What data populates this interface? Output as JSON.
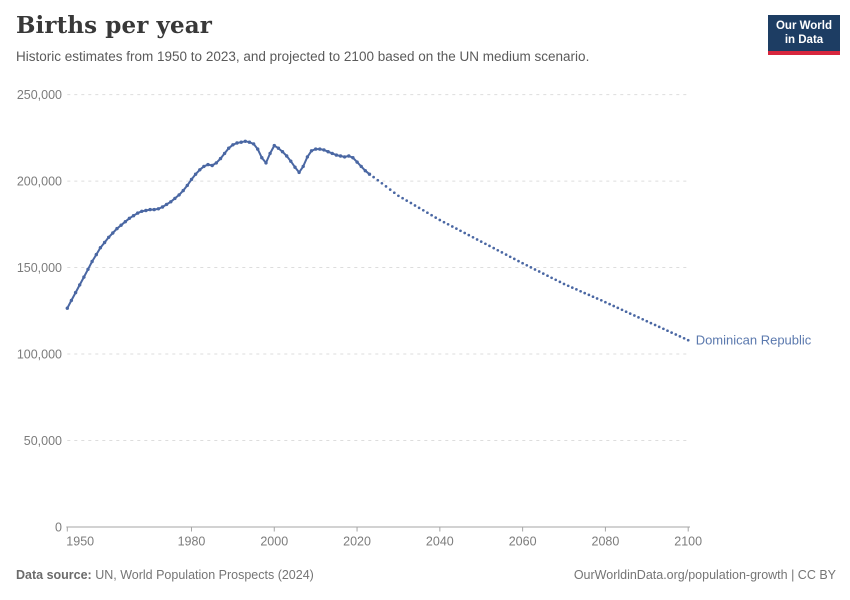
{
  "header": {
    "title": "Births per year",
    "subtitle": "Historic estimates from 1950 to 2023, and projected to 2100 based on the UN medium scenario.",
    "logo": {
      "line1": "Our World",
      "line2": "in Data",
      "bg_color": "#1d3d63",
      "accent_color": "#d7263d"
    }
  },
  "footer": {
    "source_label": "Data source:",
    "source_text": " UN, World Population Prospects (2024)",
    "link_text": "OurWorldinData.org/population-growth | CC BY"
  },
  "chart_data": {
    "type": "line",
    "title": "Births per year",
    "entity_label": "Dominican Republic",
    "line_color": "#4a67a3",
    "entity_label_color": "#5b79ae",
    "grid_color": "#dddddd",
    "axis_color": "#a5a5a5",
    "grid_on": true,
    "legend_position": "end-of-line",
    "xlim": [
      1950,
      2100
    ],
    "ylim": [
      0,
      250000
    ],
    "x_ticks": [
      1950,
      1980,
      2000,
      2020,
      2040,
      2060,
      2080,
      2100
    ],
    "y_ticks": [
      0,
      50000,
      100000,
      150000,
      200000,
      250000
    ],
    "y_tick_labels": [
      "0",
      "50,000",
      "100,000",
      "150,000",
      "200,000",
      "250,000"
    ],
    "series": [
      {
        "name": "historic estimate",
        "style": "solid",
        "start_year": 1950,
        "values": [
          126500,
          131000,
          135500,
          140000,
          144500,
          149000,
          153500,
          157500,
          161500,
          164500,
          167500,
          170000,
          172500,
          174500,
          176500,
          178500,
          180000,
          181500,
          182500,
          183000,
          183500,
          183500,
          184000,
          185000,
          186500,
          188000,
          190000,
          192000,
          194500,
          197500,
          201000,
          204000,
          206500,
          208500,
          209500,
          209000,
          210500,
          213000,
          216000,
          219000,
          221000,
          222000,
          222500,
          223000,
          222500,
          221500,
          218500,
          213500,
          210500,
          216000,
          220500,
          219000,
          217000,
          214500,
          211500,
          208000,
          205000,
          208500,
          214000,
          217500,
          218500,
          218500,
          218000,
          217000,
          216000,
          215000,
          214500,
          214000,
          214500,
          213500,
          211000,
          208500,
          206000,
          204000
        ]
      },
      {
        "name": "UN medium scenario projection",
        "style": "dotted",
        "start_year": 2024,
        "values": [
          202300,
          200500,
          198700,
          196900,
          195100,
          193300,
          191500,
          190100,
          188700,
          187300,
          185900,
          184500,
          183100,
          181700,
          180300,
          178900,
          177500,
          176250,
          175000,
          173750,
          172500,
          171250,
          170000,
          168750,
          167500,
          166250,
          165000,
          163750,
          162500,
          161250,
          160000,
          158750,
          157500,
          156250,
          155000,
          153750,
          152500,
          151300,
          150100,
          148900,
          147700,
          146500,
          145300,
          144100,
          142900,
          141700,
          140500,
          139450,
          138400,
          137350,
          136300,
          135250,
          134200,
          133150,
          132100,
          131050,
          130000,
          128900,
          127800,
          126700,
          125600,
          124500,
          123400,
          122300,
          121200,
          120100,
          119000,
          117900,
          116800,
          115700,
          114600,
          113500,
          112400,
          111300,
          110200,
          109100,
          108000
        ]
      }
    ]
  }
}
